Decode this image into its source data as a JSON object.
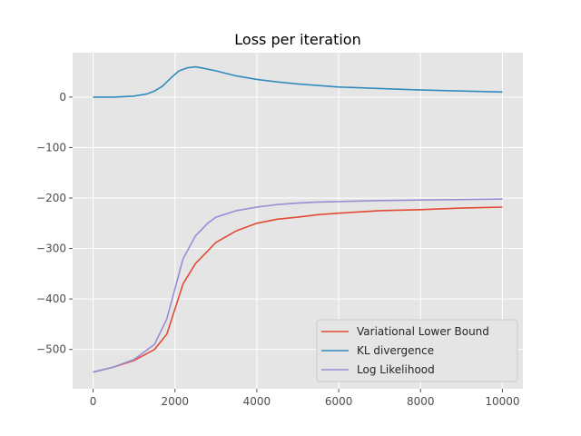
{
  "chart_data": {
    "type": "line",
    "title": "Loss per iteration",
    "xlabel": "",
    "ylabel": "",
    "xlim": [
      -500,
      10500
    ],
    "ylim": [
      -578,
      88
    ],
    "xticks": [
      0,
      2000,
      4000,
      6000,
      8000,
      10000
    ],
    "yticks": [
      0,
      -100,
      -200,
      -300,
      -400,
      -500
    ],
    "grid": true,
    "legend_position": "lower-right",
    "background": "#e5e5e5",
    "series": [
      {
        "name": "Variational Lower Bound",
        "color": "#e24a33",
        "x": [
          0,
          500,
          1000,
          1500,
          1800,
          2000,
          2200,
          2500,
          2800,
          3000,
          3500,
          4000,
          4500,
          5000,
          5500,
          6000,
          7000,
          8000,
          9000,
          10000
        ],
        "y": [
          -545,
          -535,
          -522,
          -500,
          -470,
          -420,
          -370,
          -330,
          -305,
          -288,
          -265,
          -250,
          -242,
          -238,
          -233,
          -230,
          -225,
          -223,
          -220,
          -218
        ]
      },
      {
        "name": "KL divergence",
        "color": "#348abd",
        "x": [
          0,
          500,
          1000,
          1300,
          1500,
          1700,
          1900,
          2100,
          2300,
          2500,
          2700,
          3000,
          3500,
          4000,
          4500,
          5000,
          6000,
          7000,
          8000,
          9000,
          10000
        ],
        "y": [
          0,
          0,
          2,
          6,
          12,
          22,
          38,
          52,
          58,
          60,
          57,
          52,
          42,
          35,
          30,
          26,
          20,
          17,
          14,
          12,
          10
        ]
      },
      {
        "name": "Log Likelihood",
        "color": "#988ed5",
        "x": [
          0,
          500,
          1000,
          1500,
          1800,
          2000,
          2200,
          2500,
          2800,
          3000,
          3500,
          4000,
          4500,
          5000,
          5500,
          6000,
          7000,
          8000,
          9000,
          10000
        ],
        "y": [
          -545,
          -535,
          -520,
          -490,
          -440,
          -380,
          -320,
          -275,
          -250,
          -238,
          -225,
          -218,
          -213,
          -210,
          -208,
          -207,
          -205,
          -204,
          -203,
          -202
        ]
      }
    ]
  }
}
